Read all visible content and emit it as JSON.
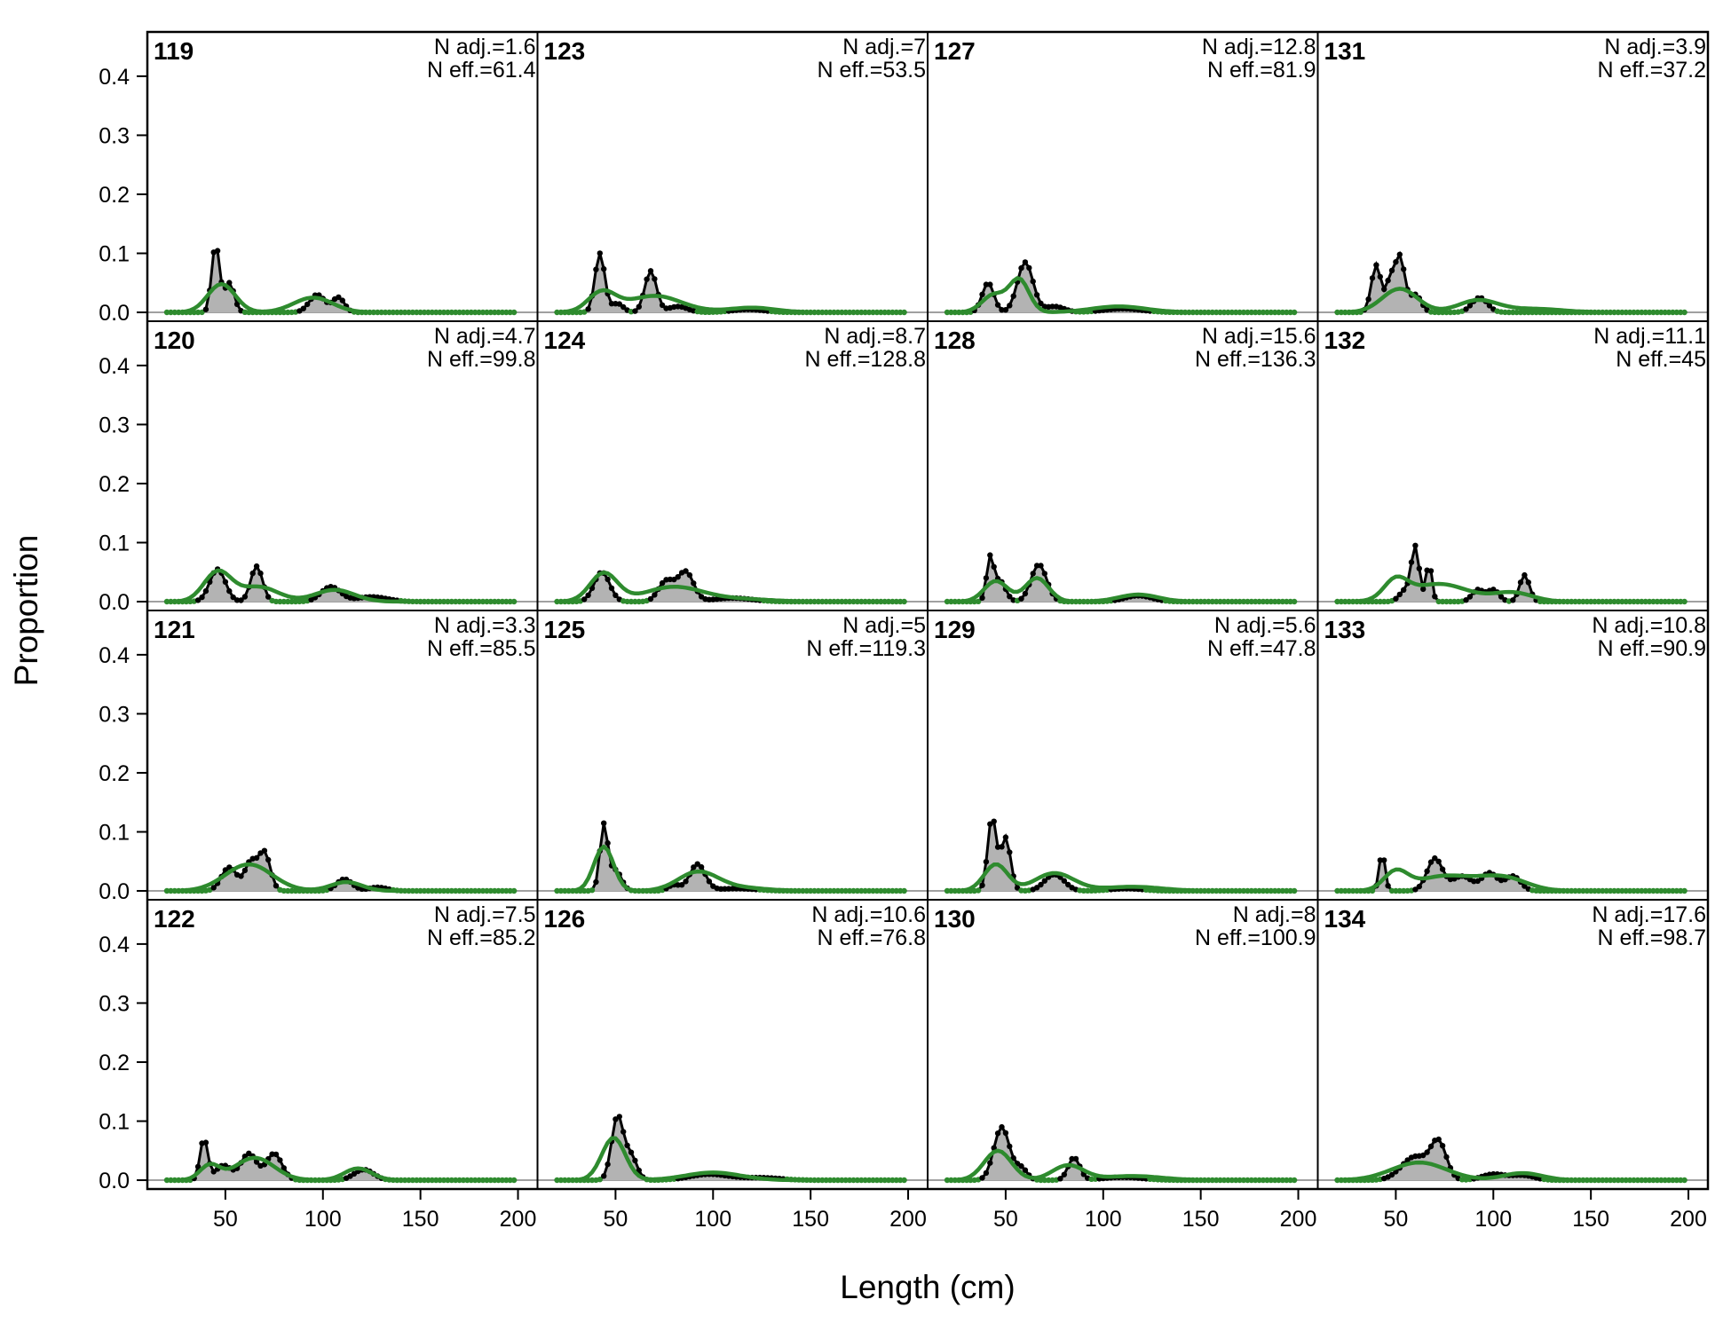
{
  "chart_data": {
    "type": "area",
    "xlabel": "Length (cm)",
    "ylabel": "Proportion",
    "xlim": [
      10,
      210
    ],
    "ylim": [
      -0.015,
      0.475
    ],
    "x_ticks": [
      50,
      100,
      150,
      200
    ],
    "y_ticks": [
      0.0,
      0.1,
      0.2,
      0.3,
      0.4
    ],
    "y_tick_labels": [
      "0.0",
      "0.1",
      "0.2",
      "0.3",
      "0.4"
    ],
    "grid": false,
    "colors": {
      "observed_fill": "#b3b3b3",
      "observed_line": "#000000",
      "expected_line": "#2e8b2e",
      "baseline": "#a0a0a0"
    },
    "panels": [
      {
        "label": "119",
        "n_adj": "N adj.=1.6",
        "n_eff": "N eff.=61.4",
        "observed_peaks": [
          [
            45,
            0.115,
            2
          ],
          [
            52,
            0.05,
            2.5
          ],
          [
            97,
            0.03,
            4
          ],
          [
            108,
            0.025,
            3
          ]
        ],
        "expected_peaks": [
          [
            48,
            0.048,
            7
          ],
          [
            95,
            0.025,
            10
          ]
        ]
      },
      {
        "label": "120",
        "n_adj": "N adj.=4.7",
        "n_eff": "N eff.=99.8",
        "observed_peaks": [
          [
            46,
            0.055,
            4
          ],
          [
            66,
            0.06,
            3
          ],
          [
            104,
            0.025,
            5
          ],
          [
            125,
            0.008,
            8
          ]
        ],
        "expected_peaks": [
          [
            46,
            0.05,
            7
          ],
          [
            67,
            0.025,
            10
          ],
          [
            106,
            0.02,
            10
          ]
        ]
      },
      {
        "label": "121",
        "n_adj": "N adj.=3.3",
        "n_eff": "N eff.=85.5",
        "observed_peaks": [
          [
            52,
            0.04,
            4
          ],
          [
            63,
            0.048,
            3
          ],
          [
            70,
            0.065,
            3
          ],
          [
            111,
            0.02,
            4
          ],
          [
            128,
            0.006,
            5
          ]
        ],
        "expected_peaks": [
          [
            62,
            0.045,
            12
          ],
          [
            112,
            0.015,
            8
          ]
        ]
      },
      {
        "label": "122",
        "n_adj": "N adj.=7.5",
        "n_eff": "N eff.=85.2",
        "observed_peaks": [
          [
            39,
            0.07,
            2
          ],
          [
            49,
            0.025,
            4
          ],
          [
            62,
            0.045,
            4
          ],
          [
            75,
            0.045,
            4
          ],
          [
            121,
            0.018,
            5
          ]
        ],
        "expected_peaks": [
          [
            42,
            0.025,
            5
          ],
          [
            65,
            0.038,
            10
          ],
          [
            118,
            0.02,
            7
          ]
        ]
      },
      {
        "label": "123",
        "n_adj": "N adj.=7",
        "n_eff": "N eff.=53.5",
        "observed_peaks": [
          [
            42,
            0.1,
            2.5
          ],
          [
            51,
            0.015,
            3
          ],
          [
            68,
            0.07,
            3
          ],
          [
            82,
            0.01,
            5
          ],
          [
            118,
            0.005,
            8
          ]
        ],
        "expected_peaks": [
          [
            43,
            0.033,
            7
          ],
          [
            70,
            0.028,
            14
          ],
          [
            120,
            0.008,
            12
          ]
        ]
      },
      {
        "label": "124",
        "n_adj": "N adj.=8.7",
        "n_eff": "N eff.=128.8",
        "observed_peaks": [
          [
            43,
            0.05,
            4
          ],
          [
            76,
            0.035,
            4
          ],
          [
            86,
            0.05,
            4
          ],
          [
            110,
            0.006,
            10
          ]
        ],
        "expected_peaks": [
          [
            44,
            0.048,
            7
          ],
          [
            80,
            0.025,
            15
          ],
          [
            115,
            0.004,
            15
          ]
        ]
      },
      {
        "label": "125",
        "n_adj": "N adj.=5",
        "n_eff": "N eff.=119.3",
        "observed_peaks": [
          [
            44,
            0.11,
            2
          ],
          [
            50,
            0.035,
            3
          ],
          [
            80,
            0.01,
            3
          ],
          [
            92,
            0.045,
            4
          ],
          [
            112,
            0.004,
            10
          ]
        ],
        "expected_peaks": [
          [
            44,
            0.075,
            5
          ],
          [
            92,
            0.03,
            10
          ],
          [
            110,
            0.006,
            15
          ]
        ]
      },
      {
        "label": "126",
        "n_adj": "N adj.=10.6",
        "n_eff": "N eff.=76.8",
        "observed_peaks": [
          [
            51,
            0.108,
            3
          ],
          [
            58,
            0.04,
            3
          ],
          [
            98,
            0.01,
            10
          ],
          [
            125,
            0.004,
            10
          ]
        ],
        "expected_peaks": [
          [
            49,
            0.072,
            6
          ],
          [
            100,
            0.013,
            14
          ]
        ]
      },
      {
        "label": "127",
        "n_adj": "N adj.=12.8",
        "n_eff": "N eff.=81.9",
        "observed_peaks": [
          [
            41,
            0.05,
            3
          ],
          [
            60,
            0.085,
            4
          ],
          [
            75,
            0.01,
            5
          ],
          [
            110,
            0.006,
            10
          ]
        ],
        "expected_peaks": [
          [
            44,
            0.03,
            6
          ],
          [
            57,
            0.055,
            5
          ],
          [
            108,
            0.01,
            14
          ]
        ]
      },
      {
        "label": "128",
        "n_adj": "N adj.=15.6",
        "n_eff": "N eff.=136.3",
        "observed_peaks": [
          [
            42,
            0.07,
            1.8
          ],
          [
            47,
            0.035,
            3
          ],
          [
            67,
            0.063,
            4
          ],
          [
            118,
            0.01,
            7
          ]
        ],
        "expected_peaks": [
          [
            45,
            0.035,
            6
          ],
          [
            66,
            0.04,
            6
          ],
          [
            118,
            0.012,
            10
          ]
        ]
      },
      {
        "label": "129",
        "n_adj": "N adj.=5.6",
        "n_eff": "N eff.=47.8",
        "observed_peaks": [
          [
            43,
            0.125,
            2.2
          ],
          [
            50,
            0.09,
            2.5
          ],
          [
            75,
            0.028,
            5
          ],
          [
            112,
            0.004,
            8
          ]
        ],
        "expected_peaks": [
          [
            45,
            0.045,
            6
          ],
          [
            75,
            0.03,
            10
          ],
          [
            115,
            0.007,
            15
          ]
        ]
      },
      {
        "label": "130",
        "n_adj": "N adj.=8",
        "n_eff": "N eff.=100.9",
        "observed_peaks": [
          [
            48,
            0.09,
            4
          ],
          [
            58,
            0.02,
            3
          ],
          [
            85,
            0.038,
            3
          ],
          [
            110,
            0.005,
            10
          ]
        ],
        "expected_peaks": [
          [
            46,
            0.05,
            7
          ],
          [
            82,
            0.025,
            8
          ],
          [
            115,
            0.007,
            15
          ]
        ]
      },
      {
        "label": "131",
        "n_adj": "N adj.=3.9",
        "n_eff": "N eff.=37.2",
        "observed_peaks": [
          [
            40,
            0.08,
            2.5
          ],
          [
            47,
            0.05,
            2
          ],
          [
            52,
            0.095,
            2.5
          ],
          [
            60,
            0.03,
            3
          ],
          [
            93,
            0.025,
            4
          ]
        ],
        "expected_peaks": [
          [
            52,
            0.04,
            9
          ],
          [
            92,
            0.02,
            10
          ],
          [
            120,
            0.006,
            15
          ]
        ]
      },
      {
        "label": "132",
        "n_adj": "N adj.=11.1",
        "n_eff": "N eff.=45",
        "observed_peaks": [
          [
            60,
            0.09,
            2
          ],
          [
            67,
            0.065,
            1.5
          ],
          [
            55,
            0.02,
            3
          ],
          [
            92,
            0.02,
            3
          ],
          [
            100,
            0.02,
            3
          ],
          [
            116,
            0.045,
            2.5
          ]
        ],
        "expected_peaks": [
          [
            50,
            0.032,
            6
          ],
          [
            72,
            0.03,
            15
          ],
          [
            110,
            0.015,
            10
          ]
        ]
      },
      {
        "label": "133",
        "n_adj": "N adj.=10.8",
        "n_eff": "N eff.=90.9",
        "observed_peaks": [
          [
            43,
            0.065,
            1.5
          ],
          [
            70,
            0.055,
            4
          ],
          [
            84,
            0.025,
            5
          ],
          [
            98,
            0.03,
            4
          ],
          [
            110,
            0.025,
            4
          ]
        ],
        "expected_peaks": [
          [
            50,
            0.03,
            6
          ],
          [
            75,
            0.025,
            15
          ],
          [
            105,
            0.022,
            12
          ]
        ]
      },
      {
        "label": "134",
        "n_adj": "N adj.=17.6",
        "n_eff": "N eff.=98.7",
        "observed_peaks": [
          [
            60,
            0.04,
            7
          ],
          [
            72,
            0.06,
            4
          ],
          [
            100,
            0.01,
            6
          ],
          [
            115,
            0.008,
            6
          ]
        ],
        "expected_peaks": [
          [
            62,
            0.03,
            14
          ],
          [
            115,
            0.012,
            10
          ]
        ]
      }
    ]
  }
}
